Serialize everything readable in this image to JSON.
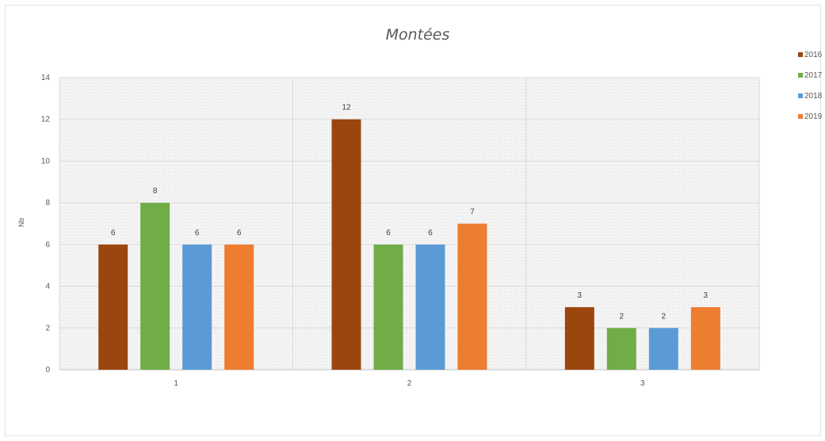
{
  "chart_data": {
    "type": "bar",
    "title": "Montées",
    "xlabel": "",
    "ylabel": "Nb",
    "categories": [
      "1",
      "2",
      "3"
    ],
    "series": [
      {
        "name": "2016",
        "color": "#9c460f",
        "values": [
          6,
          12,
          3
        ]
      },
      {
        "name": "2017",
        "color": "#70ad47",
        "values": [
          8,
          6,
          2
        ]
      },
      {
        "name": "2018",
        "color": "#5b9bd5",
        "values": [
          6,
          6,
          2
        ]
      },
      {
        "name": "2019",
        "color": "#ed7d31",
        "values": [
          6,
          7,
          3
        ]
      }
    ],
    "ylim": [
      0,
      14
    ],
    "yticks": [
      0,
      2,
      4,
      6,
      8,
      10,
      12,
      14
    ],
    "grid": true,
    "data_labels": true,
    "legend_position": "right"
  }
}
